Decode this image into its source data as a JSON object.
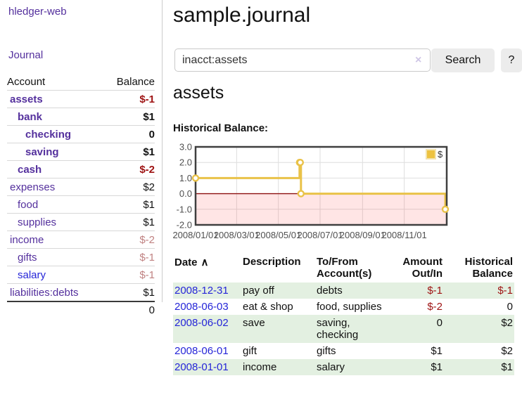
{
  "app": {
    "title": "hledger-web"
  },
  "sidebar": {
    "nav_journal": "Journal",
    "accounts_table": {
      "header_account": "Account",
      "header_balance": "Balance",
      "rows": [
        {
          "name": "assets",
          "indent": 1,
          "balance": "$-1",
          "bold": true,
          "balance_color": "dark-red",
          "link_color": "purple"
        },
        {
          "name": "bank",
          "indent": 2,
          "balance": "$1",
          "bold": true,
          "balance_color": "default",
          "link_color": "purple"
        },
        {
          "name": "checking",
          "indent": 3,
          "balance": "0",
          "bold": true,
          "balance_color": "default",
          "link_color": "purple"
        },
        {
          "name": "saving",
          "indent": 3,
          "balance": "$1",
          "bold": true,
          "balance_color": "default",
          "link_color": "purple"
        },
        {
          "name": "cash",
          "indent": 2,
          "balance": "$-2",
          "bold": true,
          "balance_color": "dark-red",
          "link_color": "purple"
        },
        {
          "name": "expenses",
          "indent": 1,
          "balance": "$2",
          "bold": false,
          "balance_color": "default",
          "link_color": "purple"
        },
        {
          "name": "food",
          "indent": 2,
          "balance": "$1",
          "bold": false,
          "balance_color": "default",
          "link_color": "purple"
        },
        {
          "name": "supplies",
          "indent": 2,
          "balance": "$1",
          "bold": false,
          "balance_color": "default",
          "link_color": "purple"
        },
        {
          "name": "income",
          "indent": 1,
          "balance": "$-2",
          "bold": false,
          "balance_color": "soft-red",
          "link_color": "purple"
        },
        {
          "name": "gifts",
          "indent": 2,
          "balance": "$-1",
          "bold": false,
          "balance_color": "soft-red",
          "link_color": "purple"
        },
        {
          "name": "salary",
          "indent": 2,
          "balance": "$-1",
          "bold": false,
          "balance_color": "soft-red",
          "link_color": "blue"
        },
        {
          "name": "liabilities:debts",
          "indent": 1,
          "balance": "$1",
          "bold": false,
          "balance_color": "default",
          "link_color": "purple"
        }
      ],
      "total": "0"
    }
  },
  "header": {
    "title": "sample.journal"
  },
  "search": {
    "value": "inacct:assets",
    "clear_icon": "×",
    "button_label": "Search",
    "help_label": "?"
  },
  "account_page": {
    "heading": "assets",
    "chart_label": "Historical Balance:"
  },
  "chart_data": {
    "type": "line",
    "step": true,
    "title": "Historical Balance:",
    "series": [
      {
        "name": "$",
        "color": "#e9c248",
        "points": [
          [
            "2008-01-01",
            1
          ],
          [
            "2008-06-01",
            2
          ],
          [
            "2008-06-02",
            2
          ],
          [
            "2008-06-03",
            0
          ],
          [
            "2008-12-31",
            -1
          ]
        ]
      }
    ],
    "x_range": [
      "2008-01-01",
      "2008-12-31"
    ],
    "x_ticks": [
      "2008/01/01",
      "2008/03/01",
      "2008/05/01",
      "2008/07/01",
      "2008/09/01",
      "2008/11/01"
    ],
    "y_ticks": [
      "3.0",
      "2.0",
      "1.0",
      "0.0",
      "-1.0",
      "-2.0"
    ],
    "ylim": [
      -2,
      3
    ],
    "grid": true,
    "negative_region_color": "rgba(255,0,0,0.10)",
    "zero_line_color": "#8e1212",
    "tick_color": "#4f4f4f",
    "border_color": "#3f3f3f",
    "legend": {
      "label": "$",
      "position": "top-right",
      "swatch_color": "#edc240",
      "swatch_border": "#f3e3ae"
    }
  },
  "register_table": {
    "headers": {
      "date": "Date",
      "sort_icon": "∧",
      "description": "Description",
      "tofrom_line1": "To/From",
      "tofrom_line2": "Account(s)",
      "amount_line1": "Amount",
      "amount_line2": "Out/In",
      "balance_line1": "Historical",
      "balance_line2": "Balance"
    },
    "rows": [
      {
        "date": "2008-12-31",
        "description": "pay off",
        "accounts": "debts",
        "amount": "$-1",
        "balance": "$-1"
      },
      {
        "date": "2008-06-03",
        "description": "eat & shop",
        "accounts": "food, supplies",
        "amount": "$-2",
        "balance": "0"
      },
      {
        "date": "2008-06-02",
        "description": "save",
        "accounts": "saving, checking",
        "amount": "0",
        "balance": "$2"
      },
      {
        "date": "2008-06-01",
        "description": "gift",
        "accounts": "gifts",
        "amount": "$1",
        "balance": "$2"
      },
      {
        "date": "2008-01-01",
        "description": "income",
        "accounts": "salary",
        "amount": "$1",
        "balance": "$1"
      }
    ]
  }
}
